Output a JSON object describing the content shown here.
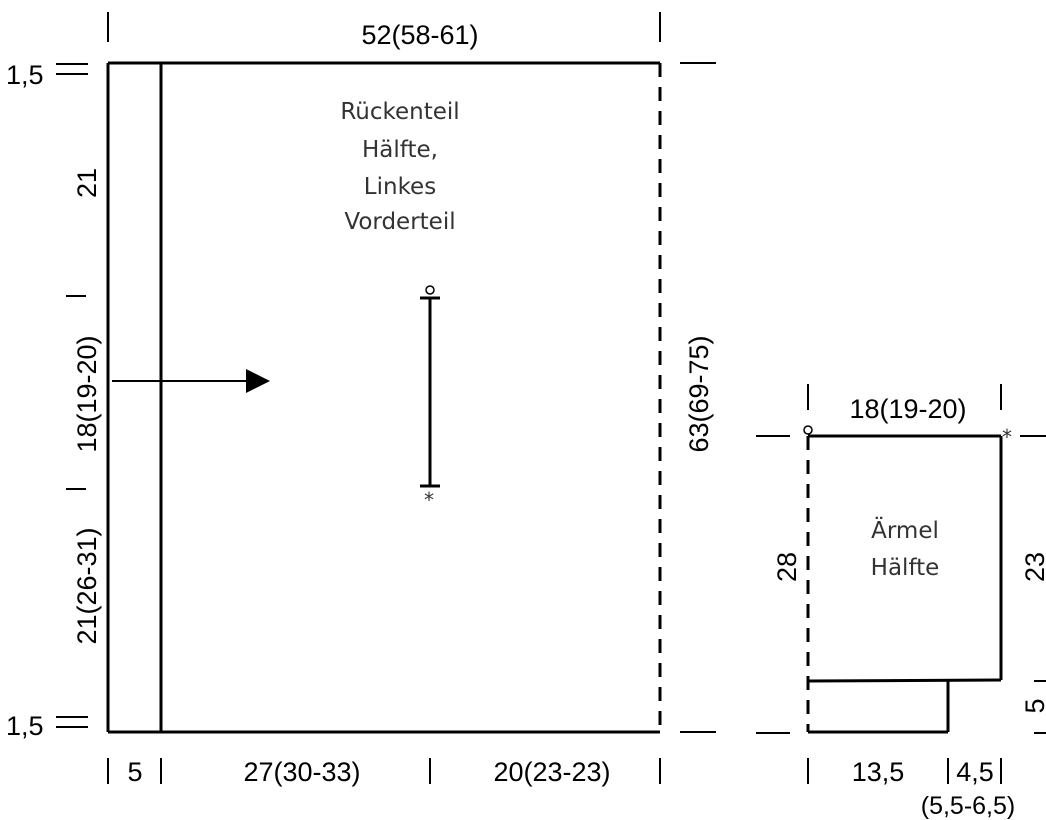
{
  "body_piece": {
    "title_lines": [
      "Rückenteil",
      "Hälfte,",
      "Linkes",
      "Vorderteil"
    ],
    "top_width": "52(58-61)",
    "height_right": "63(69-75)",
    "left_top_small": "1,5",
    "left_upper": "21",
    "left_middle": "18(19-20)",
    "left_lower": "21(26-31)",
    "left_bottom_small": "1,5",
    "bottom_a": "5",
    "bottom_b": "27(30-33)",
    "bottom_c": "20(23-23)",
    "marker_top": "°",
    "marker_bottom": "*"
  },
  "sleeve_piece": {
    "title_lines": [
      "Ärmel",
      "Hälfte"
    ],
    "top_width": "18(19-20)",
    "left_height": "28",
    "right_height": "23",
    "right_small": "5",
    "bottom_a": "13,5",
    "bottom_b": "4,5",
    "bottom_b_alt": "(5,5-6,5)",
    "marker_top_left": "°",
    "marker_top_right": "*"
  }
}
